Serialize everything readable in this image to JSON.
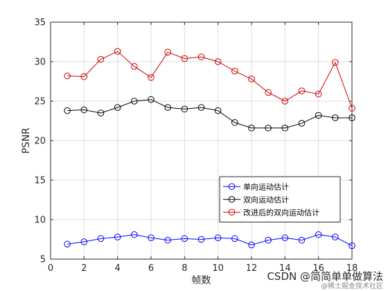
{
  "chart_data": {
    "type": "line",
    "title": "",
    "xlabel": "帧数",
    "ylabel": "PSNR",
    "xlim": [
      0,
      18
    ],
    "ylim": [
      5,
      35
    ],
    "xticks": [
      0,
      2,
      4,
      6,
      8,
      10,
      12,
      14,
      16,
      18
    ],
    "yticks": [
      5,
      10,
      15,
      20,
      25,
      30,
      35
    ],
    "grid": true,
    "legend_position": "lower-right",
    "x": [
      1,
      2,
      3,
      4,
      5,
      6,
      7,
      8,
      9,
      10,
      11,
      12,
      13,
      14,
      15,
      16,
      17,
      18
    ],
    "series": [
      {
        "name": "单向运动估计",
        "color": "#0000ff",
        "marker": "circle",
        "values": [
          6.9,
          7.2,
          7.6,
          7.8,
          8.1,
          7.7,
          7.4,
          7.6,
          7.5,
          7.7,
          7.6,
          6.8,
          7.4,
          7.7,
          7.4,
          8.1,
          7.8,
          6.7
        ]
      },
      {
        "name": "双向运动估计",
        "color": "#000000",
        "marker": "circle",
        "values": [
          23.8,
          23.9,
          23.5,
          24.2,
          25.0,
          25.2,
          24.2,
          24.0,
          24.2,
          23.8,
          22.3,
          21.6,
          21.6,
          21.6,
          22.2,
          23.2,
          22.9,
          22.9
        ]
      },
      {
        "name": "改进后的双向运动估计",
        "color": "#cc0000",
        "marker": "circle",
        "values": [
          28.2,
          28.1,
          30.3,
          31.3,
          29.4,
          28.0,
          31.2,
          30.4,
          30.6,
          30.0,
          28.8,
          27.8,
          26.1,
          25.0,
          26.3,
          25.9,
          29.9,
          24.1
        ]
      }
    ]
  },
  "watermark": {
    "text": "CSDN @简简单单做算法",
    "subtext": "@稀土掘金技术社区"
  }
}
